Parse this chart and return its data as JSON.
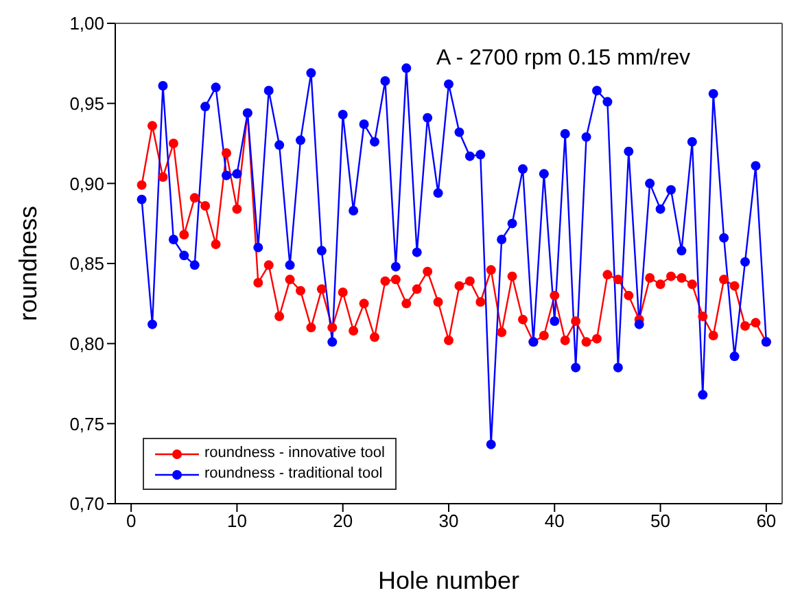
{
  "chart_data": {
    "type": "line",
    "xlabel": "Hole number",
    "ylabel": "roundness",
    "annotations": [
      "A - 2700 rpm 0.15 mm/rev"
    ],
    "x": [
      1,
      2,
      3,
      4,
      5,
      6,
      7,
      8,
      9,
      10,
      11,
      12,
      13,
      14,
      15,
      16,
      17,
      18,
      19,
      20,
      21,
      22,
      23,
      24,
      25,
      26,
      27,
      28,
      29,
      30,
      31,
      32,
      33,
      34,
      35,
      36,
      37,
      38,
      39,
      40,
      41,
      42,
      43,
      44,
      45,
      46,
      47,
      48,
      49,
      50,
      51,
      52,
      53,
      54,
      55,
      56,
      57,
      58,
      59,
      60
    ],
    "series": [
      {
        "name": "roundness - innovative tool",
        "color": "#ff0000",
        "values": [
          0.899,
          0.936,
          0.904,
          0.925,
          0.868,
          0.891,
          0.886,
          0.862,
          0.919,
          0.884,
          0.944,
          0.838,
          0.849,
          0.817,
          0.84,
          0.833,
          0.81,
          0.834,
          0.81,
          0.832,
          0.808,
          0.825,
          0.804,
          0.839,
          0.84,
          0.825,
          0.834,
          0.845,
          0.826,
          0.802,
          0.836,
          0.839,
          0.826,
          0.846,
          0.807,
          0.842,
          0.815,
          0.801,
          0.805,
          0.83,
          0.802,
          0.814,
          0.801,
          0.803,
          0.843,
          0.84,
          0.83,
          0.815,
          0.841,
          0.837,
          0.842,
          0.841,
          0.837,
          0.817,
          0.805,
          0.84,
          0.836,
          0.811,
          0.813,
          0.801
        ]
      },
      {
        "name": "roundness - traditional tool",
        "color": "#0000ff",
        "values": [
          0.89,
          0.812,
          0.961,
          0.865,
          0.855,
          0.849,
          0.948,
          0.96,
          0.905,
          0.906,
          0.944,
          0.86,
          0.958,
          0.924,
          0.849,
          0.927,
          0.969,
          0.858,
          0.801,
          0.943,
          0.883,
          0.937,
          0.926,
          0.964,
          0.848,
          0.972,
          0.857,
          0.941,
          0.894,
          0.962,
          0.932,
          0.917,
          0.918,
          0.737,
          0.865,
          0.875,
          0.909,
          0.801,
          0.906,
          0.814,
          0.931,
          0.785,
          0.929,
          0.958,
          0.951,
          0.785,
          0.92,
          0.812,
          0.9,
          0.884,
          0.896,
          0.858,
          0.926,
          0.768,
          0.956,
          0.866,
          0.792,
          0.851,
          0.911,
          0.801
        ]
      }
    ],
    "xlim": [
      -1.5,
      61.5
    ],
    "xticks": [
      0,
      10,
      20,
      30,
      40,
      50,
      60
    ],
    "ylim": [
      0.7,
      1.0
    ],
    "yticks": [
      {
        "value": 0.7,
        "label": "0,70"
      },
      {
        "value": 0.75,
        "label": "0,75"
      },
      {
        "value": 0.8,
        "label": "0,80"
      },
      {
        "value": 0.85,
        "label": "0,85"
      },
      {
        "value": 0.9,
        "label": "0,90"
      },
      {
        "value": 0.95,
        "label": "0,95"
      },
      {
        "value": 1.0,
        "label": "1,00"
      }
    ],
    "grid": false,
    "legend": "bottom left",
    "marker": "circle",
    "line_style": "solid"
  }
}
